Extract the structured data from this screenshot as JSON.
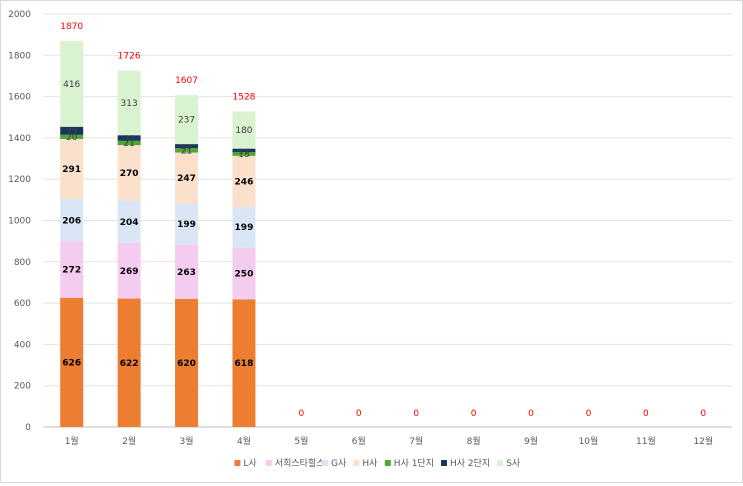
{
  "chart_data": {
    "type": "bar",
    "stacked": true,
    "categories": [
      "1월",
      "2월",
      "3월",
      "4월",
      "5월",
      "6월",
      "7월",
      "8월",
      "9월",
      "10월",
      "11월",
      "12월"
    ],
    "ylim": [
      0,
      2000
    ],
    "yticks": [
      0,
      200,
      400,
      600,
      800,
      1000,
      1200,
      1400,
      1600,
      1800,
      2000
    ],
    "grid": true,
    "legend_position": "bottom",
    "series": [
      {
        "name": "L사",
        "color": "#ed7d31",
        "label_color": "#000000",
        "values": [
          626,
          622,
          620,
          618,
          0,
          0,
          0,
          0,
          0,
          0,
          0,
          0
        ]
      },
      {
        "name": "서희스타힐스",
        "color": "#f4ccf0",
        "label_color": "#000000",
        "values": [
          272,
          269,
          263,
          250,
          0,
          0,
          0,
          0,
          0,
          0,
          0,
          0
        ]
      },
      {
        "name": "G사",
        "color": "#dae6f5",
        "label_color": "#000000",
        "values": [
          206,
          204,
          199,
          199,
          0,
          0,
          0,
          0,
          0,
          0,
          0,
          0
        ]
      },
      {
        "name": "H사",
        "color": "#fbe0cc",
        "label_color": "#000000",
        "values": [
          291,
          270,
          247,
          246,
          0,
          0,
          0,
          0,
          0,
          0,
          0,
          0
        ]
      },
      {
        "name": "H사 1단지",
        "color": "#4ea72e",
        "label_color": "#404040",
        "values": [
          20,
          21,
          21,
          18,
          0,
          0,
          0,
          0,
          0,
          0,
          0,
          0
        ]
      },
      {
        "name": "H사 2단지",
        "color": "#17375e",
        "label_color": "#404040",
        "values": [
          39,
          27,
          20,
          17,
          0,
          0,
          0,
          0,
          0,
          0,
          0,
          0
        ]
      },
      {
        "name": "S사",
        "color": "#d9f2d0",
        "label_color": "#404040",
        "values": [
          416,
          313,
          237,
          180,
          0,
          0,
          0,
          0,
          0,
          0,
          0,
          0
        ]
      }
    ],
    "totals": [
      1870,
      1726,
      1607,
      1528,
      0,
      0,
      0,
      0,
      0,
      0,
      0,
      0
    ],
    "totals_color": "#ff0000"
  }
}
